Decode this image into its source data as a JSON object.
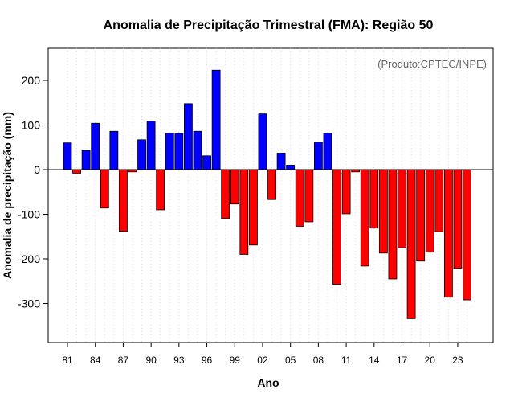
{
  "chart_data": {
    "type": "bar",
    "title": "Anomalia de Precipitação Trimestral (FMA): Região 50",
    "xlabel": "Ano",
    "ylabel": "Anomalia de precipitação (mm)",
    "annotation": "(Produto:CPTEC/INPE)",
    "ylim": [
      -390,
      275
    ],
    "yticks": [
      200,
      100,
      0,
      -100,
      -200,
      -300
    ],
    "ytick_labels": [
      "200",
      "100",
      "0",
      "-100",
      "-200",
      "-300"
    ],
    "xtick_labels": [
      "81",
      "84",
      "87",
      "90",
      "93",
      "96",
      "99",
      "02",
      "05",
      "08",
      "11",
      "14",
      "17",
      "20",
      "23"
    ],
    "grid": true,
    "colors": {
      "positive": "#0000ff",
      "negative": "#ff0000",
      "edge": "#000000",
      "grid": "#d3d3d3",
      "zero_line": "#000000"
    },
    "categories": [
      "1981",
      "1982",
      "1983",
      "1984",
      "1985",
      "1986",
      "1987",
      "1988",
      "1989",
      "1990",
      "1991",
      "1992",
      "1993",
      "1994",
      "1995",
      "1996",
      "1997",
      "1998",
      "1999",
      "2000",
      "2001",
      "2002",
      "2003",
      "2004",
      "2005",
      "2006",
      "2007",
      "2008",
      "2009",
      "2010",
      "2011",
      "2012",
      "2013",
      "2014",
      "2015",
      "2016",
      "2017",
      "2018",
      "2019",
      "2020",
      "2021",
      "2022",
      "2023",
      "2024"
    ],
    "values": [
      60,
      -8,
      43,
      104,
      -86,
      86,
      -138,
      -5,
      67,
      109,
      -90,
      82,
      81,
      148,
      86,
      31,
      223,
      -109,
      -77,
      -190,
      -169,
      125,
      -67,
      37,
      10,
      -127,
      -117,
      62,
      82,
      -257,
      -99,
      -5,
      -216,
      -131,
      -187,
      -245,
      -175,
      -334,
      -205,
      -185,
      -139,
      -286,
      -221,
      -292
    ]
  }
}
